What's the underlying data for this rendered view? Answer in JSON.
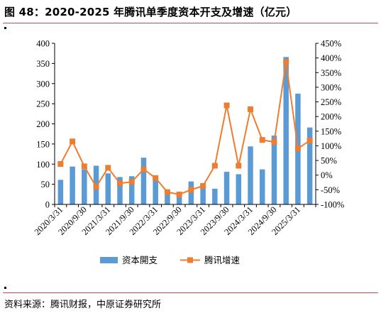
{
  "header": {
    "title": "图 48：2020-2025 年腾讯单季度资本开支及增速（亿元）"
  },
  "footer": {
    "source": "资料来源：腾讯财报，中原证券研究所"
  },
  "colors": {
    "bar": "#5b9bd5",
    "line": "#ed7d31",
    "rule": "#c0504d",
    "axis": "#000000"
  },
  "chart_data": {
    "type": "bar",
    "title": "",
    "categories": [
      "2020/3/31",
      "2020/6/30",
      "2020/9/30",
      "2020/12/31",
      "2021/3/31",
      "2021/6/30",
      "2021/9/30",
      "2021/12/31",
      "2022/3/31",
      "2022/6/30",
      "2022/9/30",
      "2022/12/31",
      "2023/3/31",
      "2023/6/30",
      "2023/9/30",
      "2023/12/31",
      "2024/3/31",
      "2024/6/30",
      "2024/9/30",
      "2024/12/31",
      "2025/3/31",
      "2025/6/30"
    ],
    "x_tick_labels": [
      "2020/3/31",
      "2020/9/30",
      "2021/3/31",
      "2021/9/30",
      "2022/3/31",
      "2022/9/30",
      "2023/3/31",
      "2023/9/30",
      "2024/3/31",
      "2024/9/30",
      "2025/3/31"
    ],
    "series": [
      {
        "name": "资本開支",
        "type": "bar",
        "axis": "left",
        "values": [
          61,
          94,
          87,
          96,
          77,
          68,
          70,
          116,
          68,
          35,
          25,
          57,
          44,
          39,
          81,
          75,
          144,
          87,
          171,
          366,
          275,
          191
        ]
      },
      {
        "name": "腾讯增速",
        "type": "line",
        "axis": "right",
        "unit": "%",
        "values": [
          38,
          115,
          30,
          -40,
          25,
          -28,
          -23,
          20,
          -10,
          -58,
          -66,
          -50,
          -37,
          32,
          238,
          32,
          225,
          120,
          113,
          386,
          91,
          118
        ]
      }
    ],
    "y_left": {
      "range": [
        0,
        400
      ],
      "ticks": [
        "0",
        "50",
        "100",
        "150",
        "200",
        "250",
        "300",
        "350",
        "400"
      ]
    },
    "y_right": {
      "range": [
        -100,
        450
      ],
      "ticks": [
        "-100%",
        "-50%",
        "0%",
        "50%",
        "100%",
        "150%",
        "200%",
        "250%",
        "300%",
        "350%",
        "400%",
        "450%"
      ]
    },
    "legend_position": "bottom",
    "grid": false
  }
}
